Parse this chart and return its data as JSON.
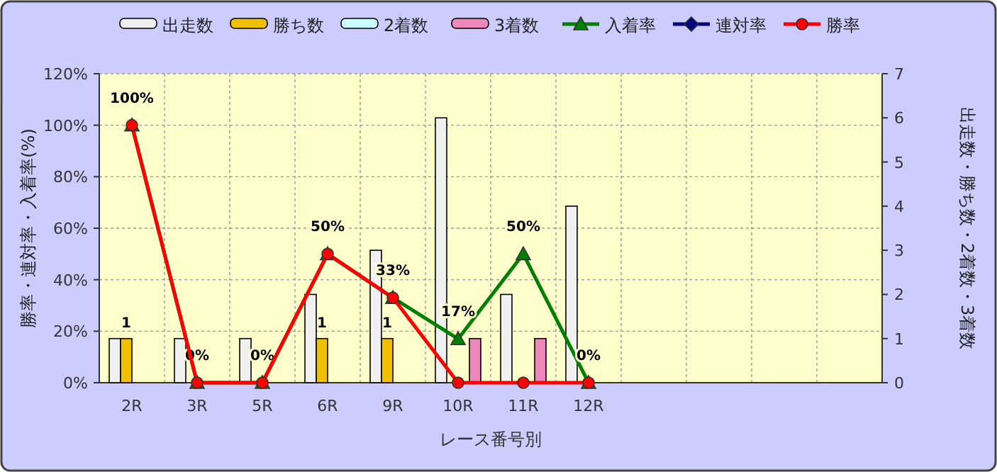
{
  "chart_data": {
    "type": "bar",
    "categories": [
      "2R",
      "3R",
      "5R",
      "6R",
      "9R",
      "10R",
      "11R",
      "12R",
      null,
      null,
      null,
      null
    ],
    "xlabel": "レース番号別",
    "ylabel": "勝率・連対率・入着率(%)",
    "y2label": "出走数・勝ち数・2着数・3着数",
    "ylim": [
      0,
      120
    ],
    "yticks": [
      {
        "value": 0,
        "label": "0%"
      },
      {
        "value": 20,
        "label": "20%"
      },
      {
        "value": 40,
        "label": "40%"
      },
      {
        "value": 60,
        "label": "60%"
      },
      {
        "value": 80,
        "label": "80%"
      },
      {
        "value": 100,
        "label": "100%"
      },
      {
        "value": 120,
        "label": "120%"
      }
    ],
    "y2lim": [
      0,
      7
    ],
    "y2ticks": [
      0,
      1,
      2,
      3,
      4,
      5,
      6,
      7
    ],
    "grid": true,
    "legend": "top",
    "series": [
      {
        "name": "出走数",
        "axis": "y2",
        "color": "#f0f0f0",
        "values": [
          1,
          1,
          1,
          2,
          3,
          6,
          2,
          4,
          null,
          null,
          null,
          null
        ]
      },
      {
        "name": "勝ち数",
        "axis": "y2",
        "color": "#f0c000",
        "values": [
          1,
          0,
          0,
          1,
          1,
          0,
          0,
          0,
          null,
          null,
          null,
          null
        ],
        "value_labels": [
          "1",
          null,
          null,
          "1",
          "1",
          null,
          null,
          null,
          null,
          null,
          null,
          null
        ]
      },
      {
        "name": "2着数",
        "axis": "y2",
        "color": "#ccffff",
        "values": [
          0,
          0,
          0,
          0,
          0,
          0,
          0,
          0,
          null,
          null,
          null,
          null
        ]
      },
      {
        "name": "3着数",
        "axis": "y2",
        "color": "#ee88bb",
        "values": [
          0,
          0,
          0,
          0,
          0,
          1,
          1,
          0,
          null,
          null,
          null,
          null
        ]
      },
      {
        "name": "入着率",
        "type": "line",
        "color": "#008000",
        "marker": "triangle",
        "values": [
          100,
          0,
          0,
          50,
          33,
          17,
          50,
          0,
          null,
          null,
          null,
          null
        ],
        "value_labels": [
          "100%",
          "0%",
          "0%",
          "50%",
          "33%",
          "17%",
          "50%",
          "0%",
          null,
          null,
          null,
          null
        ]
      },
      {
        "name": "連対率",
        "type": "line",
        "color": "#000080",
        "marker": "diamond",
        "values": [
          null,
          null,
          null,
          null,
          null,
          null,
          null,
          null,
          null,
          null,
          null,
          null
        ]
      },
      {
        "name": "勝率",
        "type": "line",
        "color": "#ff0000",
        "marker": "circle",
        "values": [
          100,
          0,
          0,
          50,
          33,
          0,
          0,
          0,
          null,
          null,
          null,
          null
        ]
      }
    ]
  }
}
